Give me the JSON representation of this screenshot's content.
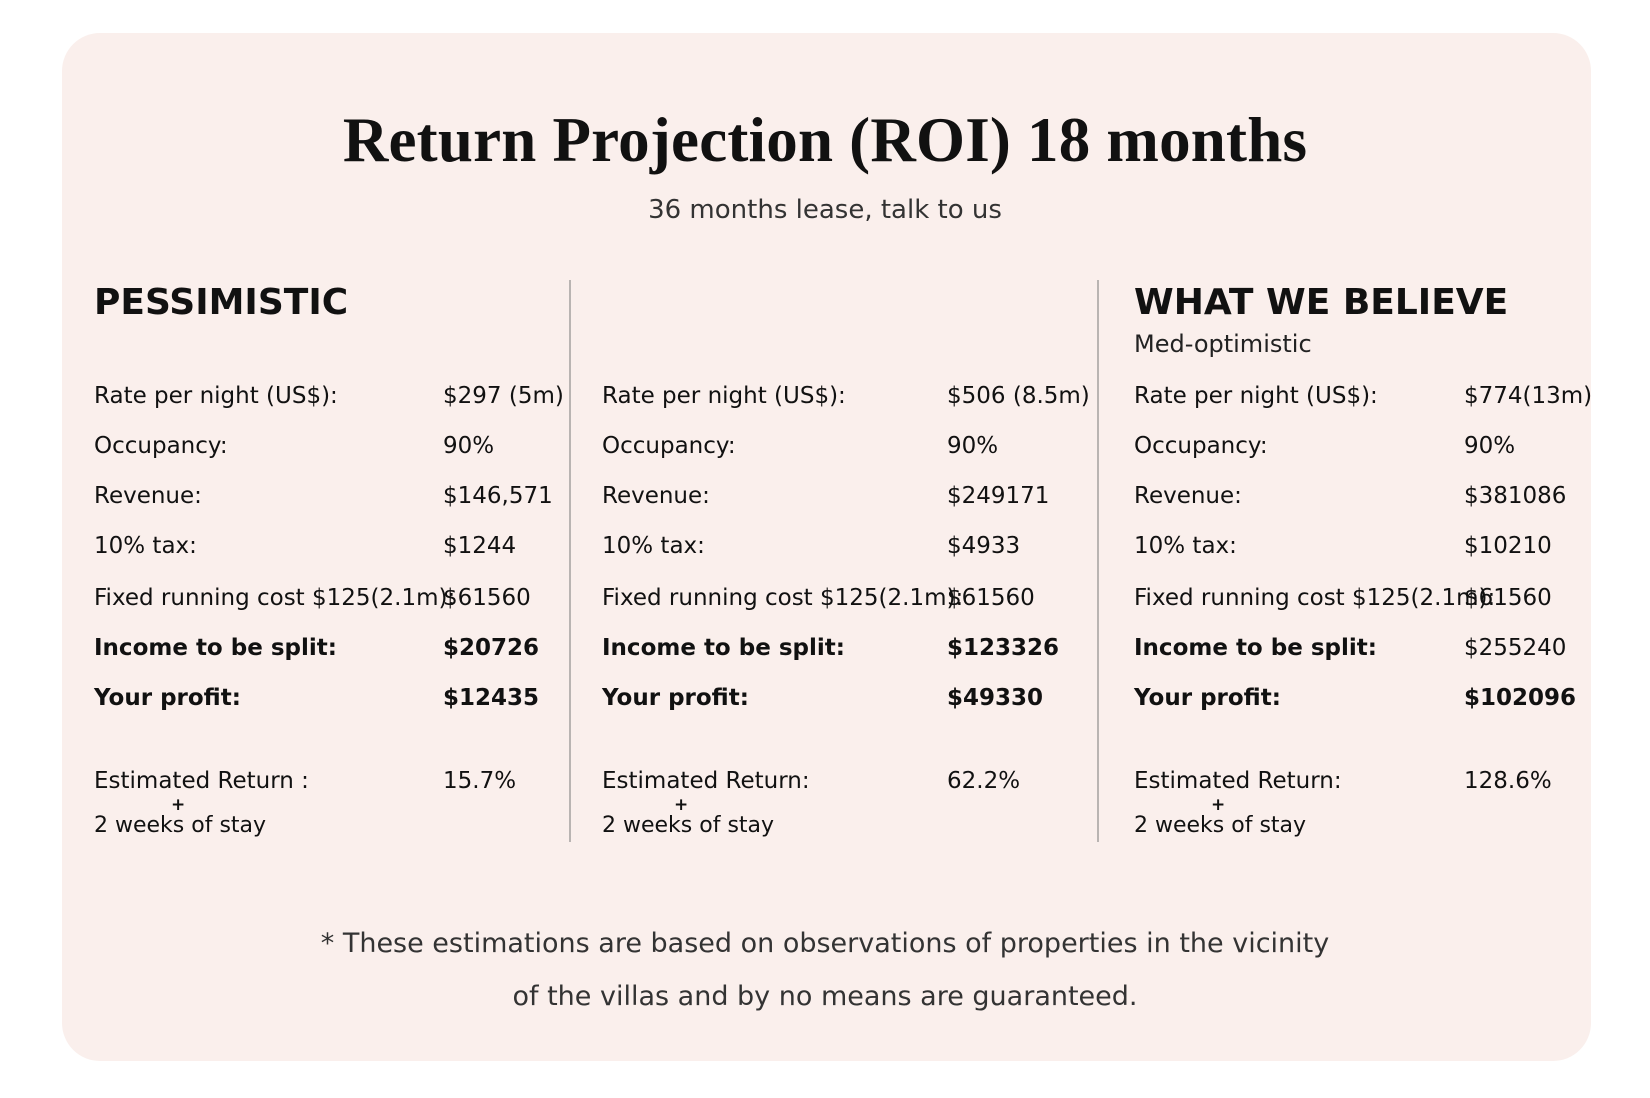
{
  "title": "Return Projection (ROI) 18 months",
  "subtitle": "36 months lease, talk to us",
  "columns": [
    {
      "heading": "PESSIMISTIC",
      "subheading": "",
      "rows": [
        {
          "label": "Rate per night (US$):",
          "value": "$297 (5m)",
          "bold_label": false,
          "bold_value": false
        },
        {
          "label": "Occupancy:",
          "value": "90%",
          "bold_label": false,
          "bold_value": false
        },
        {
          "label": "Revenue:",
          "value": "$146,571",
          "bold_label": false,
          "bold_value": false
        },
        {
          "label": "10% tax:",
          "value": "$1244",
          "bold_label": false,
          "bold_value": false
        },
        {
          "label": "Fixed running cost $125(2.1m):",
          "value": "$61560",
          "bold_label": false,
          "bold_value": false
        },
        {
          "label": "Income to be split:",
          "value": "$20726",
          "bold_label": true,
          "bold_value": true
        },
        {
          "label": "Your profit:",
          "value": "$12435",
          "bold_label": true,
          "bold_value": true
        }
      ],
      "estimated_label": "Estimated Return :",
      "estimated_value": "15.7%",
      "plus": "+",
      "stay": "2 weeks of stay"
    },
    {
      "heading": "",
      "subheading": "",
      "rows": [
        {
          "label": "Rate per night (US$):",
          "value": "$506 (8.5m)",
          "bold_label": false,
          "bold_value": false
        },
        {
          "label": "Occupancy:",
          "value": "90%",
          "bold_label": false,
          "bold_value": false
        },
        {
          "label": "Revenue:",
          "value": "$249171",
          "bold_label": false,
          "bold_value": false
        },
        {
          "label": "10% tax:",
          "value": "$4933",
          "bold_label": false,
          "bold_value": false
        },
        {
          "label": "Fixed running cost $125(2.1m):",
          "value": "$61560",
          "bold_label": false,
          "bold_value": false
        },
        {
          "label": "Income to be split:",
          "value": "$123326",
          "bold_label": true,
          "bold_value": true
        },
        {
          "label": "Your profit:",
          "value": "$49330",
          "bold_label": true,
          "bold_value": true
        }
      ],
      "estimated_label": "Estimated Return:",
      "estimated_value": "62.2%",
      "plus": "+",
      "stay": "2 weeks of stay"
    },
    {
      "heading": "WHAT WE BELIEVE",
      "subheading": "Med-optimistic",
      "rows": [
        {
          "label": "Rate per night (US$):",
          "value": "$774(13m)",
          "bold_label": false,
          "bold_value": false
        },
        {
          "label": "Occupancy:",
          "value": "90%",
          "bold_label": false,
          "bold_value": false
        },
        {
          "label": "Revenue:",
          "value": "$381086",
          "bold_label": false,
          "bold_value": false
        },
        {
          "label": "10% tax:",
          "value": "$10210",
          "bold_label": false,
          "bold_value": false
        },
        {
          "label": "Fixed running cost $125(2.1m):",
          "value": "$61560",
          "bold_label": false,
          "bold_value": false
        },
        {
          "label": "Income to be split:",
          "value": "$255240",
          "bold_label": true,
          "bold_value": false
        },
        {
          "label": "Your profit:",
          "value": "$102096",
          "bold_label": true,
          "bold_value": true
        }
      ],
      "estimated_label": "Estimated Return:",
      "estimated_value": "128.6%",
      "plus": "+",
      "stay": "2 weeks of stay"
    }
  ],
  "disclaimer_line1": "* These estimations are based on observations of properties in the vicinity",
  "disclaimer_line2": "of the villas and by no means are guaranteed.",
  "colors": {
    "card_background": "#faefec",
    "divider": "#b9b4b2",
    "text": "#111111"
  }
}
